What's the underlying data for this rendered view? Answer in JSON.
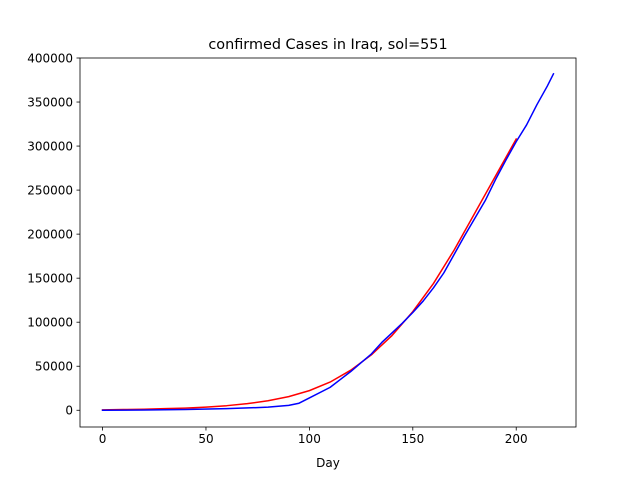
{
  "chart_data": {
    "type": "line",
    "title": "confirmed Cases in Iraq, sol=551",
    "xlabel": "Day",
    "ylabel": "",
    "xlim": [
      -10.9,
      228.9
    ],
    "ylim": [
      -19000,
      400000
    ],
    "xticks": [
      0,
      50,
      100,
      150,
      200
    ],
    "yticks": [
      0,
      50000,
      100000,
      150000,
      200000,
      250000,
      300000,
      350000,
      400000
    ],
    "xtick_labels": [
      "0",
      "50",
      "100",
      "150",
      "200"
    ],
    "ytick_labels": [
      "0",
      "50000",
      "100000",
      "150000",
      "200000",
      "250000",
      "300000",
      "350000",
      "400000"
    ],
    "grid": false,
    "legend": "none",
    "series": [
      {
        "color": "#ff0000",
        "x": [
          0,
          10,
          20,
          30,
          40,
          50,
          60,
          70,
          80,
          90,
          100,
          110,
          120,
          130,
          140,
          150,
          160,
          170,
          180,
          190,
          200
        ],
        "y": [
          500,
          800,
          1200,
          1800,
          2500,
          3600,
          5200,
          7500,
          10800,
          15500,
          22300,
          32000,
          45500,
          63000,
          85000,
          112000,
          144000,
          182000,
          224000,
          266000,
          308000
        ]
      },
      {
        "color": "#0000ff",
        "x": [
          0,
          20,
          40,
          60,
          80,
          90,
          95,
          100,
          110,
          115,
          120,
          125,
          130,
          135,
          140,
          145,
          150,
          155,
          160,
          165,
          170,
          175,
          180,
          185,
          190,
          195,
          200,
          205,
          210,
          215,
          218
        ],
        "y": [
          0,
          300,
          900,
          1800,
          3500,
          5500,
          8000,
          14000,
          26000,
          35000,
          44000,
          54000,
          64000,
          77000,
          88000,
          99000,
          111000,
          124000,
          139000,
          156000,
          177000,
          198000,
          218000,
          238000,
          262000,
          284000,
          305000,
          324000,
          347000,
          368000,
          382000
        ]
      }
    ]
  }
}
